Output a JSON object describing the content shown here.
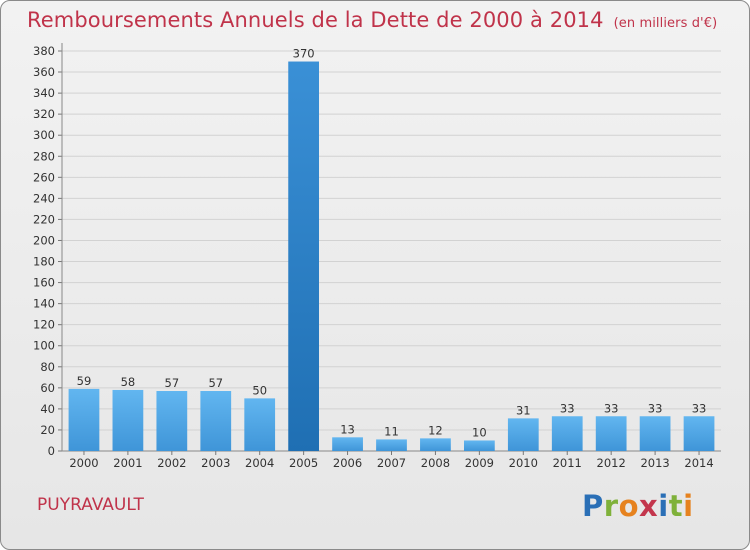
{
  "header": {
    "title": "Remboursements Annuels de la Dette de 2000 à 2014",
    "unit": "(en milliers d'€)"
  },
  "footer": {
    "commune": "PUYRAVAULT",
    "logo_letters": [
      "P",
      "r",
      "o",
      "x",
      "i",
      "t",
      "i"
    ]
  },
  "colors": {
    "bar": "#5aaeea",
    "bar_highlight": "#2a7fc6",
    "title": "#c0334a",
    "grid": "#d0d0d0"
  },
  "chart_data": {
    "type": "bar",
    "title": "Remboursements Annuels de la Dette de 2000 à 2014",
    "ylabel": "",
    "xlabel": "",
    "categories": [
      "2000",
      "2001",
      "2002",
      "2003",
      "2004",
      "2005",
      "2006",
      "2007",
      "2008",
      "2009",
      "2010",
      "2011",
      "2012",
      "2013",
      "2014"
    ],
    "values": [
      59,
      58,
      57,
      57,
      50,
      370,
      13,
      11,
      12,
      10,
      31,
      33,
      33,
      33,
      33
    ],
    "highlight_index": 5,
    "ylim": [
      0,
      380
    ],
    "yticks": [
      0,
      20,
      40,
      60,
      80,
      100,
      120,
      140,
      160,
      180,
      200,
      220,
      240,
      260,
      280,
      300,
      320,
      340,
      360,
      380
    ],
    "grid": true,
    "data_labels": true
  }
}
